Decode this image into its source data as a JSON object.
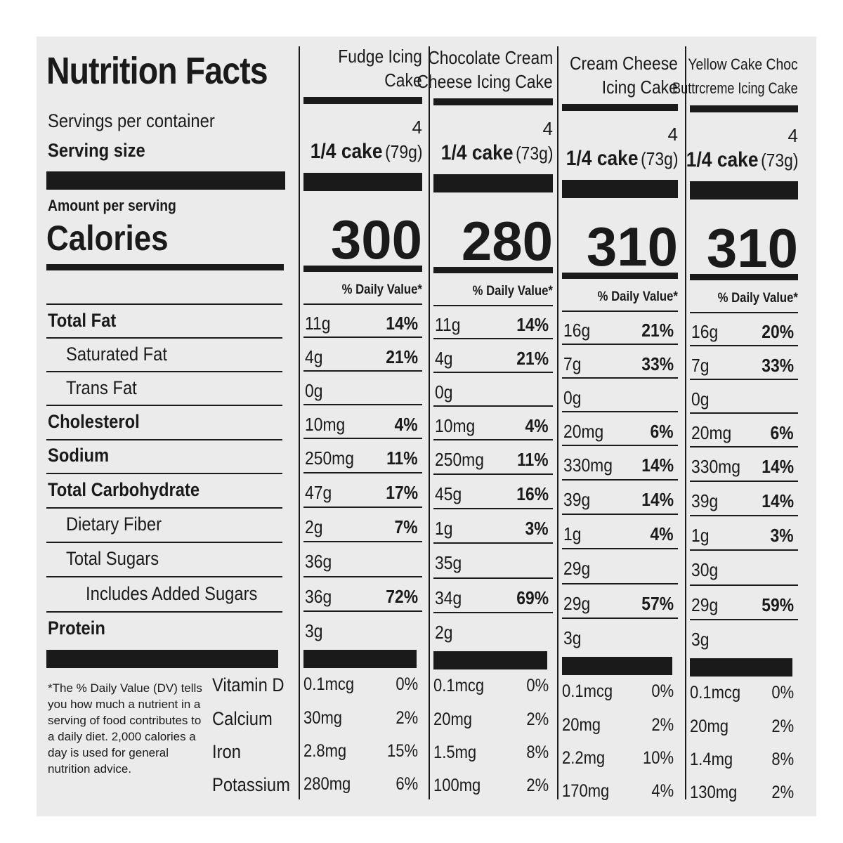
{
  "label": {
    "title": "Nutrition Facts",
    "servings_label": "Servings per container",
    "serving_size_label": "Serving size",
    "amount_label": "Amount per serving",
    "calories_label": "Calories",
    "dv_header": "% Daily Value*",
    "nutrients": [
      "Total Fat",
      "Saturated Fat",
      "Trans Fat",
      "Cholesterol",
      "Sodium",
      "Total Carbohydrate",
      "Dietary Fiber",
      "Total Sugars",
      "Includes Added Sugars",
      "Protein"
    ],
    "micro_nutrients": [
      "Vitamin D",
      "Calcium",
      "Iron",
      "Potassium"
    ],
    "footnote": "*The % Daily Value (DV) tells you how much a nutrient in a serving of food contributes to a daily diet. 2,000 calories a day is used for general nutrition advice."
  },
  "products": [
    {
      "name_line1": "Fudge Icing",
      "name_line2": "Cake",
      "servings": "4",
      "serving_size_bold": "1/4 cake",
      "serving_size_weight": "(79g)",
      "calories": "300",
      "values": [
        [
          "11g",
          "14%"
        ],
        [
          "4g",
          "21%"
        ],
        [
          "0g",
          ""
        ],
        [
          "10mg",
          "4%"
        ],
        [
          "250mg",
          "11%"
        ],
        [
          "47g",
          "17%"
        ],
        [
          "2g",
          "7%"
        ],
        [
          "36g",
          ""
        ],
        [
          "36g",
          "72%"
        ],
        [
          "3g",
          ""
        ]
      ],
      "micro": [
        [
          "0.1mcg",
          "0%"
        ],
        [
          "30mg",
          "2%"
        ],
        [
          "2.8mg",
          "15%"
        ],
        [
          "280mg",
          "6%"
        ]
      ]
    },
    {
      "name_line1": "Chocolate Cream",
      "name_line2": "Cheese Icing Cake",
      "servings": "4",
      "serving_size_bold": "1/4 cake",
      "serving_size_weight": "(73g)",
      "calories": "280",
      "values": [
        [
          "11g",
          "14%"
        ],
        [
          "4g",
          "21%"
        ],
        [
          "0g",
          ""
        ],
        [
          "10mg",
          "4%"
        ],
        [
          "250mg",
          "11%"
        ],
        [
          "45g",
          "16%"
        ],
        [
          "1g",
          "3%"
        ],
        [
          "35g",
          ""
        ],
        [
          "34g",
          "69%"
        ],
        [
          "2g",
          ""
        ]
      ],
      "micro": [
        [
          "0.1mcg",
          "0%"
        ],
        [
          "20mg",
          "2%"
        ],
        [
          "1.5mg",
          "8%"
        ],
        [
          "100mg",
          "2%"
        ]
      ]
    },
    {
      "name_line1": "Cream Cheese",
      "name_line2": "Icing Cake",
      "servings": "4",
      "serving_size_bold": "1/4 cake",
      "serving_size_weight": "(73g)",
      "calories": "310",
      "values": [
        [
          "16g",
          "21%"
        ],
        [
          "7g",
          "33%"
        ],
        [
          "0g",
          ""
        ],
        [
          "20mg",
          "6%"
        ],
        [
          "330mg",
          "14%"
        ],
        [
          "39g",
          "14%"
        ],
        [
          "1g",
          "4%"
        ],
        [
          "29g",
          ""
        ],
        [
          "29g",
          "57%"
        ],
        [
          "3g",
          ""
        ]
      ],
      "micro": [
        [
          "0.1mcg",
          "0%"
        ],
        [
          "20mg",
          "2%"
        ],
        [
          "2.2mg",
          "10%"
        ],
        [
          "170mg",
          "4%"
        ]
      ]
    },
    {
      "name_line1": "Yellow Cake Choc",
      "name_line2": "Buttrcreme Icing Cake",
      "servings": "4",
      "serving_size_bold": "1/4 cake",
      "serving_size_weight": "(73g)",
      "calories": "310",
      "values": [
        [
          "16g",
          "20%"
        ],
        [
          "7g",
          "33%"
        ],
        [
          "0g",
          ""
        ],
        [
          "20mg",
          "6%"
        ],
        [
          "330mg",
          "14%"
        ],
        [
          "39g",
          "14%"
        ],
        [
          "1g",
          "3%"
        ],
        [
          "30g",
          ""
        ],
        [
          "29g",
          "59%"
        ],
        [
          "3g",
          ""
        ]
      ],
      "micro": [
        [
          "0.1mcg",
          "0%"
        ],
        [
          "20mg",
          "2%"
        ],
        [
          "1.4mg",
          "8%"
        ],
        [
          "130mg",
          "2%"
        ]
      ]
    }
  ]
}
